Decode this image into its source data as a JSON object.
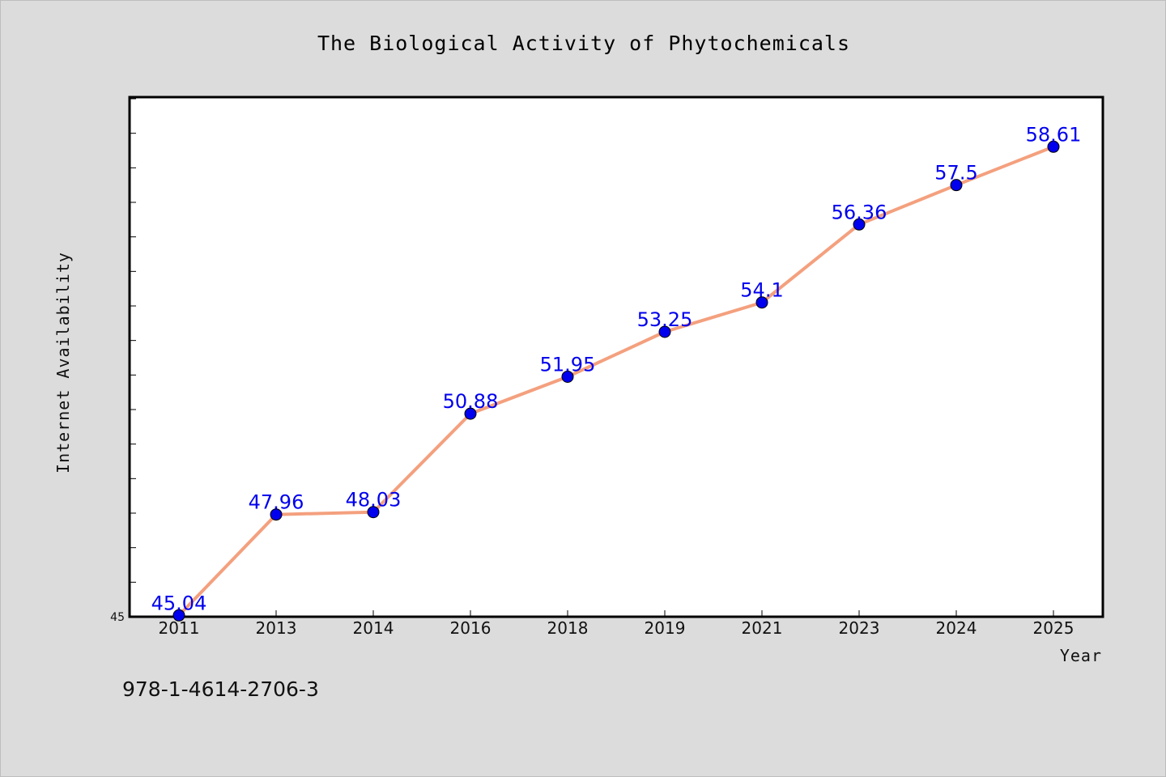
{
  "chart_data": {
    "type": "line",
    "title": "The Biological Activity of Phytochemicals",
    "xlabel": "Year",
    "ylabel": "Internet Availability",
    "categories": [
      "2011",
      "2013",
      "2014",
      "2016",
      "2018",
      "2019",
      "2021",
      "2023",
      "2024",
      "2025"
    ],
    "series": [
      {
        "values": [
          45.04,
          47.96,
          48.03,
          50.88,
          51.95,
          53.25,
          54.1,
          56.36,
          57.5,
          58.61
        ],
        "labels": [
          "45.04",
          "47.96",
          "48.03",
          "50.88",
          "51.95",
          "53.25",
          "54.1",
          "56.36",
          "57.5",
          "58.61"
        ]
      }
    ],
    "ylim": [
      45,
      60
    ],
    "yticks": [
      "45"
    ],
    "grid": false,
    "line_color": "#f4a07e",
    "marker_color": "#0000ee",
    "label_color": "#0000ee"
  },
  "footer": {
    "isbn": "978-1-4614-2706-3"
  }
}
